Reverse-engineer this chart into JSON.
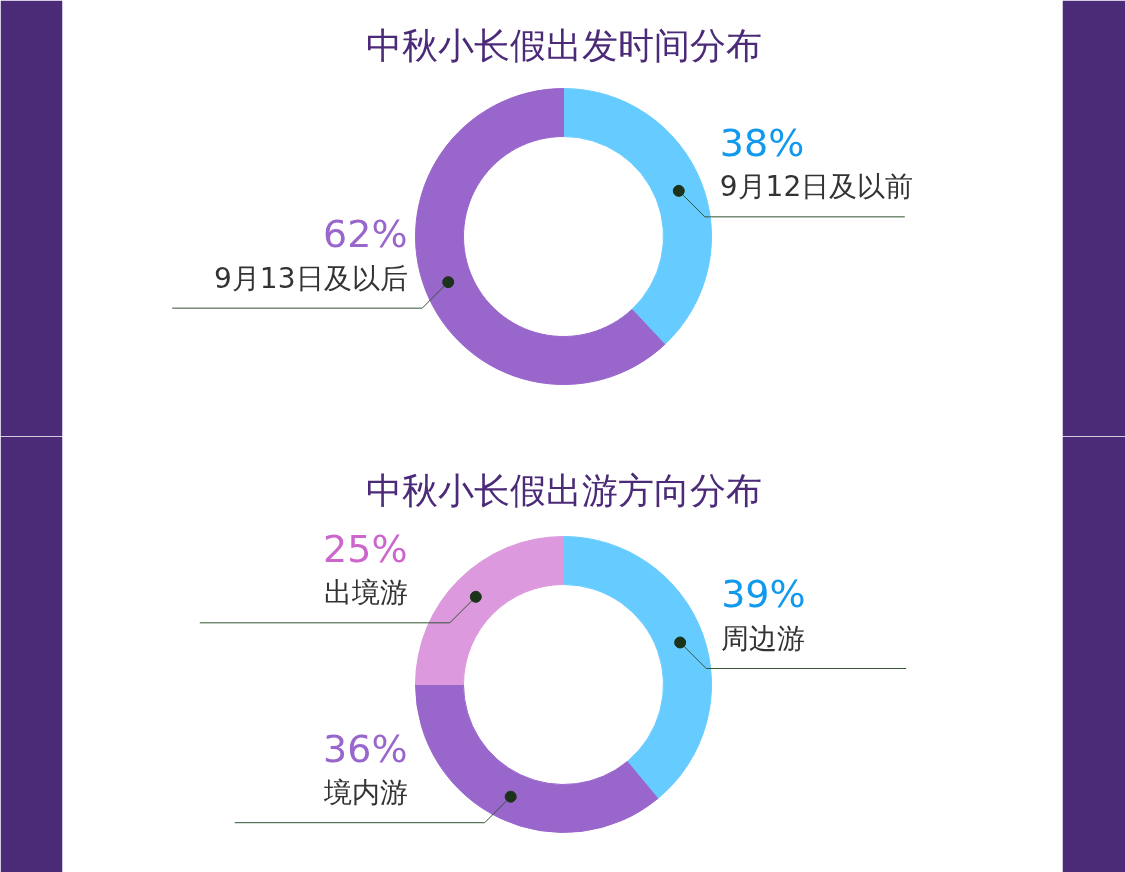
{
  "chart_data": [
    {
      "type": "donut",
      "title": "中秋小长假出发时间分布",
      "categories": [
        "9月12日及以前",
        "9月13日及以后"
      ],
      "values": [
        38,
        62
      ],
      "value_labels": [
        "38%",
        "62%"
      ],
      "colors": [
        "#66ccff",
        "#9966cc"
      ],
      "legend": false
    },
    {
      "type": "donut",
      "title": "中秋小长假出游方向分布",
      "categories": [
        "周边游",
        "境内游",
        "出境游"
      ],
      "values": [
        39,
        36,
        25
      ],
      "value_labels": [
        "39%",
        "36%",
        "25%"
      ],
      "colors": [
        "#66ccff",
        "#9966cc",
        "#dd99dd"
      ],
      "legend": false
    }
  ]
}
